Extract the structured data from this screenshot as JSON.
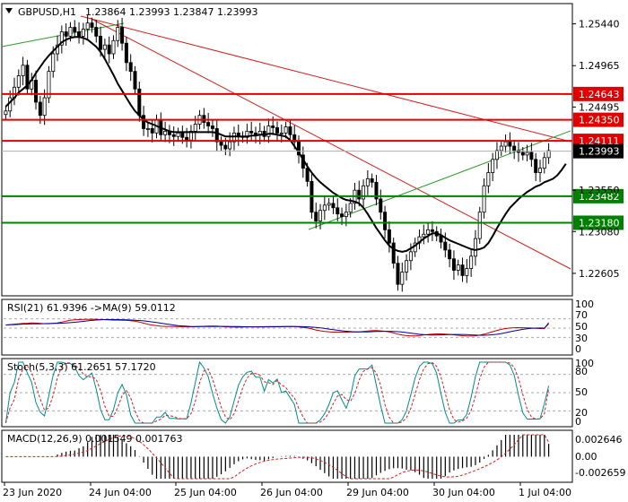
{
  "chart_data": {
    "type": "candlestick",
    "symbol_label": "GBPUSD,H1",
    "ohlc_label": "1.23864 1.23993 1.23847 1.23993",
    "current_price": 1.23993,
    "price_axis_ticks": [
      "1.25440",
      "1.24965",
      "1.24495",
      "1.23550",
      "1.23080",
      "1.22605"
    ],
    "price_range": [
      1.2237,
      1.2565
    ],
    "x_ticks": [
      "23 Jun 2020",
      "24 Jun 04:00",
      "25 Jun 04:00",
      "26 Jun 04:00",
      "29 Jun 04:00",
      "30 Jun 04:00",
      "1 Jul 04:00"
    ],
    "levels": [
      {
        "price": 1.24643,
        "label": "1.24643",
        "color": "#e00000"
      },
      {
        "price": 1.2435,
        "label": "1.24350",
        "color": "#e00000"
      },
      {
        "price": 1.24111,
        "label": "1.24111",
        "color": "#e00000"
      },
      {
        "price": 1.23482,
        "label": "1.23482",
        "color": "#008000"
      },
      {
        "price": 1.2318,
        "label": "1.23180",
        "color": "#008000"
      }
    ],
    "close_series": [
      1.2445,
      1.246,
      1.2472,
      1.2485,
      1.2497,
      1.247,
      1.248,
      1.2455,
      1.244,
      1.246,
      1.249,
      1.251,
      1.252,
      1.2535,
      1.253,
      1.254,
      1.2535,
      1.253,
      1.2538,
      1.2545,
      1.254,
      1.253,
      1.2515,
      1.252,
      1.251,
      1.2525,
      1.254,
      1.2522,
      1.25,
      1.249,
      1.247,
      1.244,
      1.2425,
      1.2425,
      1.242,
      1.2435,
      1.2418,
      1.2422,
      1.2418,
      1.2416,
      1.242,
      1.2415,
      1.2412,
      1.2422,
      1.243,
      1.244,
      1.2432,
      1.2428,
      1.2425,
      1.241,
      1.2406,
      1.2402,
      1.241,
      1.242,
      1.2416,
      1.2415,
      1.2422,
      1.242,
      1.2418,
      1.2422,
      1.2416,
      1.2428,
      1.2426,
      1.242,
      1.242,
      1.2427,
      1.2418,
      1.241,
      1.2395,
      1.238,
      1.2365,
      1.233,
      1.232,
      1.2332,
      1.2338,
      1.234,
      1.2335,
      1.2328,
      1.2325,
      1.233,
      1.234,
      1.2355,
      1.2345,
      1.236,
      1.2368,
      1.2364,
      1.2345,
      1.233,
      1.231,
      1.2295,
      1.2272,
      1.2248,
      1.2262,
      1.2275,
      1.2285,
      1.2295,
      1.2302,
      1.2305,
      1.231,
      1.2308,
      1.2303,
      1.2296,
      1.2287,
      1.2277,
      1.2264,
      1.227,
      1.2258,
      1.2266,
      1.228,
      1.23,
      1.233,
      1.236,
      1.2375,
      1.239,
      1.24,
      1.2405,
      1.241,
      1.2405,
      1.24,
      1.2398,
      1.2395,
      1.2398,
      1.239,
      1.2375,
      1.238,
      1.2392,
      1.24
    ],
    "ma_series": [
      1.245,
      1.2455,
      1.246,
      1.2466,
      1.247,
      1.2474,
      1.248,
      1.2488,
      1.2495,
      1.2502,
      1.2508,
      1.2513,
      1.2518,
      1.2523,
      1.2526,
      1.2528,
      1.2529,
      1.2529,
      1.2528,
      1.2526,
      1.2522,
      1.2518,
      1.2512,
      1.2504,
      1.2495,
      1.2486,
      1.2476,
      1.2468,
      1.246,
      1.2452,
      1.2445,
      1.244,
      1.2435,
      1.2432,
      1.243,
      1.2428,
      1.2426,
      1.2424,
      1.2422,
      1.2421,
      1.2421,
      1.2421,
      1.2421,
      1.2421,
      1.2421,
      1.2421,
      1.2421,
      1.2421,
      1.2421,
      1.242,
      1.2418,
      1.2416,
      1.2416,
      1.2416,
      1.2416,
      1.2416,
      1.2416,
      1.2417,
      1.2417,
      1.2418,
      1.2418,
      1.2419,
      1.2419,
      1.2418,
      1.2417,
      1.2416,
      1.2412,
      1.2405,
      1.2398,
      1.239,
      1.2382,
      1.2375,
      1.2369,
      1.2364,
      1.236,
      1.2356,
      1.2352,
      1.2349,
      1.2346,
      1.2344,
      1.2343,
      1.2342,
      1.234,
      1.2335,
      1.2328,
      1.232,
      1.2312,
      1.2305,
      1.2298,
      1.2292,
      1.2288,
      1.2286,
      1.2285,
      1.2286,
      1.2289,
      1.2292,
      1.2296,
      1.23,
      1.2303,
      1.2306,
      1.2306,
      1.2304,
      1.2301,
      1.2298,
      1.2296,
      1.2294,
      1.2292,
      1.229,
      1.2288,
      1.2287,
      1.2288,
      1.229,
      1.2295,
      1.2303,
      1.2312,
      1.232,
      1.2328,
      1.2335,
      1.234,
      1.2345,
      1.2349,
      1.2353,
      1.2356,
      1.2359,
      1.2361,
      1.2364,
      1.2366,
      1.2368,
      1.2372,
      1.2378,
      1.2385
    ],
    "rsi": {
      "label": "RSI(21) 61.9396  ->MA(9) 59.0112",
      "scale_labels": [
        "100",
        "70",
        "50",
        "30",
        "0"
      ],
      "last": 61.9396,
      "ma_last": 59.0112
    },
    "stoch": {
      "label": "Stoch(5,3,3) 61.2651 57.1720",
      "scale_labels": [
        "100",
        "80",
        "50",
        "20",
        "0"
      ],
      "last_k": 61.2651,
      "last_d": 57.172
    },
    "macd": {
      "label": "MACD(12,26,9) 0.001549 0.001763",
      "scale_labels": [
        "0.002646",
        "0.00",
        "-0.002659"
      ],
      "range": [
        -0.002659,
        0.002646
      ],
      "last": 0.001549,
      "signal_last": 0.001763
    }
  }
}
